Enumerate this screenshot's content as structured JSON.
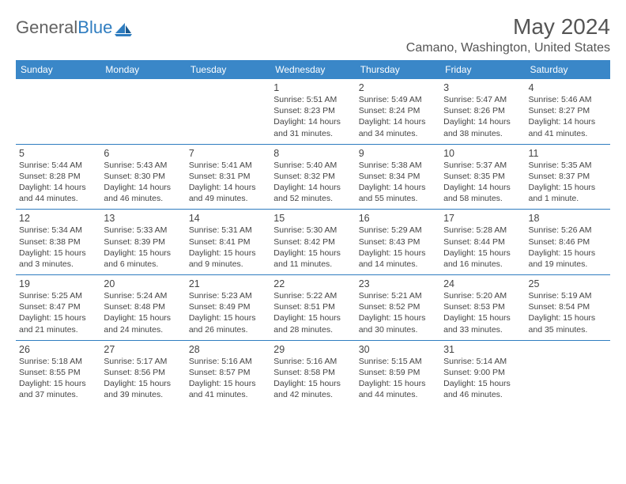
{
  "brand": {
    "part1": "General",
    "part2": "Blue"
  },
  "title": "May 2024",
  "location": "Camano, Washington, United States",
  "colors": {
    "header_bg": "#3a87c8",
    "header_text": "#ffffff",
    "border": "#2f7dc0",
    "text": "#444444",
    "title_text": "#555555"
  },
  "dayHeaders": [
    "Sunday",
    "Monday",
    "Tuesday",
    "Wednesday",
    "Thursday",
    "Friday",
    "Saturday"
  ],
  "weeks": [
    [
      null,
      null,
      null,
      {
        "n": "1",
        "sr": "5:51 AM",
        "ss": "8:23 PM",
        "dl": "14 hours and 31 minutes."
      },
      {
        "n": "2",
        "sr": "5:49 AM",
        "ss": "8:24 PM",
        "dl": "14 hours and 34 minutes."
      },
      {
        "n": "3",
        "sr": "5:47 AM",
        "ss": "8:26 PM",
        "dl": "14 hours and 38 minutes."
      },
      {
        "n": "4",
        "sr": "5:46 AM",
        "ss": "8:27 PM",
        "dl": "14 hours and 41 minutes."
      }
    ],
    [
      {
        "n": "5",
        "sr": "5:44 AM",
        "ss": "8:28 PM",
        "dl": "14 hours and 44 minutes."
      },
      {
        "n": "6",
        "sr": "5:43 AM",
        "ss": "8:30 PM",
        "dl": "14 hours and 46 minutes."
      },
      {
        "n": "7",
        "sr": "5:41 AM",
        "ss": "8:31 PM",
        "dl": "14 hours and 49 minutes."
      },
      {
        "n": "8",
        "sr": "5:40 AM",
        "ss": "8:32 PM",
        "dl": "14 hours and 52 minutes."
      },
      {
        "n": "9",
        "sr": "5:38 AM",
        "ss": "8:34 PM",
        "dl": "14 hours and 55 minutes."
      },
      {
        "n": "10",
        "sr": "5:37 AM",
        "ss": "8:35 PM",
        "dl": "14 hours and 58 minutes."
      },
      {
        "n": "11",
        "sr": "5:35 AM",
        "ss": "8:37 PM",
        "dl": "15 hours and 1 minute."
      }
    ],
    [
      {
        "n": "12",
        "sr": "5:34 AM",
        "ss": "8:38 PM",
        "dl": "15 hours and 3 minutes."
      },
      {
        "n": "13",
        "sr": "5:33 AM",
        "ss": "8:39 PM",
        "dl": "15 hours and 6 minutes."
      },
      {
        "n": "14",
        "sr": "5:31 AM",
        "ss": "8:41 PM",
        "dl": "15 hours and 9 minutes."
      },
      {
        "n": "15",
        "sr": "5:30 AM",
        "ss": "8:42 PM",
        "dl": "15 hours and 11 minutes."
      },
      {
        "n": "16",
        "sr": "5:29 AM",
        "ss": "8:43 PM",
        "dl": "15 hours and 14 minutes."
      },
      {
        "n": "17",
        "sr": "5:28 AM",
        "ss": "8:44 PM",
        "dl": "15 hours and 16 minutes."
      },
      {
        "n": "18",
        "sr": "5:26 AM",
        "ss": "8:46 PM",
        "dl": "15 hours and 19 minutes."
      }
    ],
    [
      {
        "n": "19",
        "sr": "5:25 AM",
        "ss": "8:47 PM",
        "dl": "15 hours and 21 minutes."
      },
      {
        "n": "20",
        "sr": "5:24 AM",
        "ss": "8:48 PM",
        "dl": "15 hours and 24 minutes."
      },
      {
        "n": "21",
        "sr": "5:23 AM",
        "ss": "8:49 PM",
        "dl": "15 hours and 26 minutes."
      },
      {
        "n": "22",
        "sr": "5:22 AM",
        "ss": "8:51 PM",
        "dl": "15 hours and 28 minutes."
      },
      {
        "n": "23",
        "sr": "5:21 AM",
        "ss": "8:52 PM",
        "dl": "15 hours and 30 minutes."
      },
      {
        "n": "24",
        "sr": "5:20 AM",
        "ss": "8:53 PM",
        "dl": "15 hours and 33 minutes."
      },
      {
        "n": "25",
        "sr": "5:19 AM",
        "ss": "8:54 PM",
        "dl": "15 hours and 35 minutes."
      }
    ],
    [
      {
        "n": "26",
        "sr": "5:18 AM",
        "ss": "8:55 PM",
        "dl": "15 hours and 37 minutes."
      },
      {
        "n": "27",
        "sr": "5:17 AM",
        "ss": "8:56 PM",
        "dl": "15 hours and 39 minutes."
      },
      {
        "n": "28",
        "sr": "5:16 AM",
        "ss": "8:57 PM",
        "dl": "15 hours and 41 minutes."
      },
      {
        "n": "29",
        "sr": "5:16 AM",
        "ss": "8:58 PM",
        "dl": "15 hours and 42 minutes."
      },
      {
        "n": "30",
        "sr": "5:15 AM",
        "ss": "8:59 PM",
        "dl": "15 hours and 44 minutes."
      },
      {
        "n": "31",
        "sr": "5:14 AM",
        "ss": "9:00 PM",
        "dl": "15 hours and 46 minutes."
      },
      null
    ]
  ],
  "labels": {
    "sunrise": "Sunrise: ",
    "sunset": "Sunset: ",
    "daylight": "Daylight: "
  }
}
